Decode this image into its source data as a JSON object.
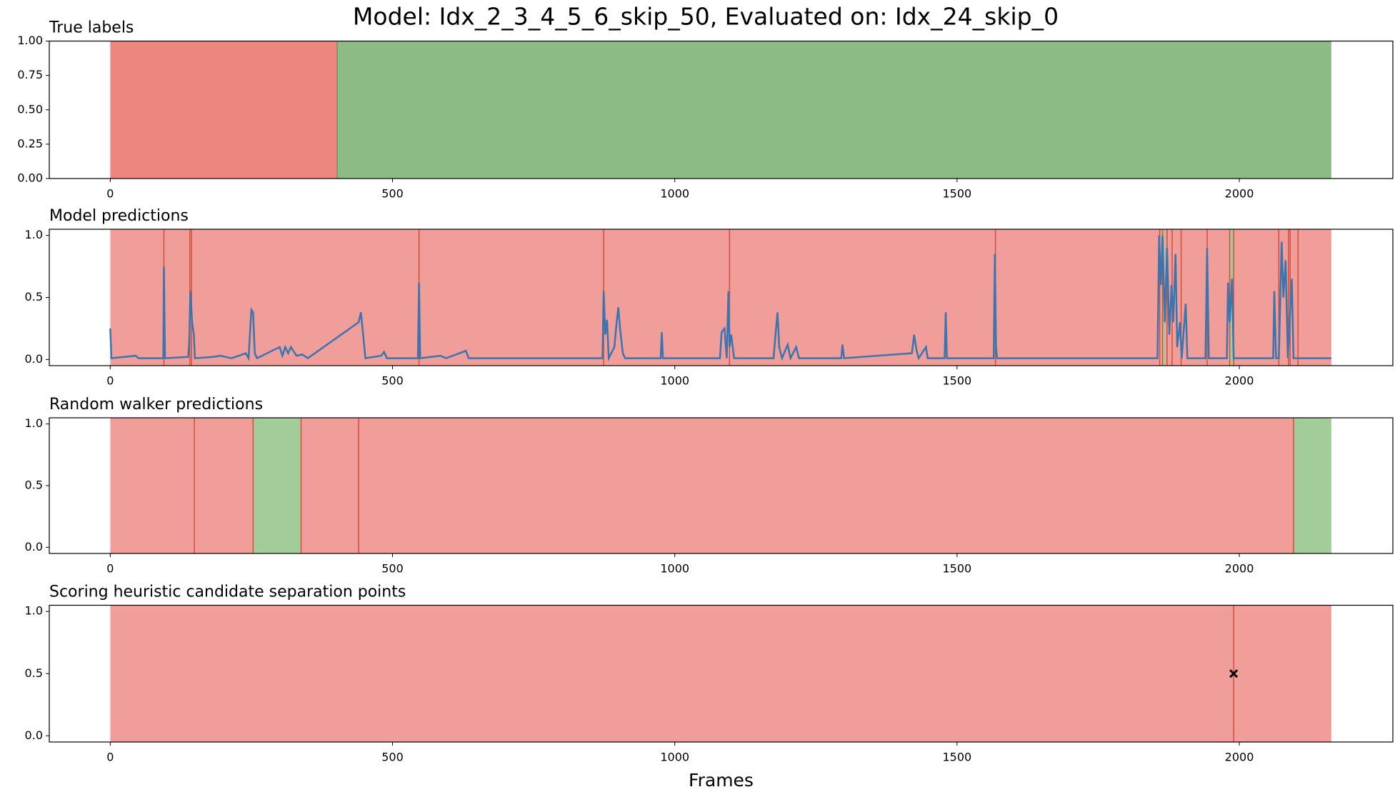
{
  "title": "Model: Idx_2_3_4_5_6_skip_50, Evaluated on: Idx_24_skip_0",
  "chart_data": [
    {
      "type": "spans",
      "title": "True labels",
      "xlim": [
        -108,
        2272
      ],
      "xticks": [
        0,
        500,
        1000,
        1500,
        2000
      ],
      "ylim": [
        0,
        1
      ],
      "yticks": [
        {
          "value": 0,
          "label": "0.00"
        },
        {
          "value": 0.25,
          "label": "0.25"
        },
        {
          "value": 0.5,
          "label": "0.50"
        },
        {
          "value": 0.75,
          "label": "0.75"
        },
        {
          "value": 1,
          "label": "1.00"
        }
      ],
      "spans": [
        {
          "start": 0,
          "end": 402,
          "color": "#ee8680"
        },
        {
          "start": 402,
          "end": 2163,
          "color": "#8dbb85"
        }
      ],
      "vlines": [
        402
      ],
      "vline_color": "#6f9a5a"
    },
    {
      "type": "line",
      "title": "Model predictions",
      "xlim": [
        -108,
        2272
      ],
      "xticks": [
        0,
        500,
        1000,
        1500,
        2000
      ],
      "ylim": [
        -0.05,
        1.05
      ],
      "yticks": [
        {
          "value": 0,
          "label": "0.0"
        },
        {
          "value": 0.5,
          "label": "0.5"
        },
        {
          "value": 1,
          "label": "1.0"
        }
      ],
      "spans": [
        {
          "start": 0,
          "end": 2163,
          "color": "#f19d9a"
        },
        {
          "start": 1862,
          "end": 1868,
          "color": "#a2cc9a"
        },
        {
          "start": 1983,
          "end": 1989,
          "color": "#a2cc9a"
        }
      ],
      "vlines": [
        95,
        141,
        144,
        547,
        874,
        1097,
        1568,
        1859,
        1864,
        1872,
        1881,
        1897,
        1943,
        1983,
        1990,
        2070,
        2087,
        2090,
        2104
      ],
      "vline_color": "#d0503b",
      "series": [
        {
          "color": "#3b75af",
          "x": [
            0,
            2,
            45,
            50,
            94,
            95,
            97,
            138,
            140,
            142,
            145,
            148,
            150,
            180,
            195,
            215,
            240,
            245,
            250,
            253,
            256,
            260,
            300,
            305,
            310,
            315,
            320,
            330,
            340,
            350,
            440,
            444,
            448,
            452,
            480,
            485,
            490,
            545,
            547,
            549,
            585,
            595,
            630,
            635,
            872,
            874,
            877,
            880,
            883,
            893,
            897,
            900,
            903,
            908,
            912,
            975,
            977,
            979,
            1080,
            1083,
            1088,
            1092,
            1095,
            1097,
            1100,
            1105,
            1175,
            1178,
            1182,
            1185,
            1190,
            1200,
            1205,
            1215,
            1220,
            1295,
            1297,
            1300,
            1420,
            1424,
            1428,
            1432,
            1445,
            1448,
            1478,
            1480,
            1482,
            1565,
            1567,
            1569,
            1571,
            1855,
            1858,
            1861,
            1864,
            1868,
            1872,
            1876,
            1880,
            1883,
            1887,
            1890,
            1895,
            1898,
            1905,
            1908,
            1940,
            1943,
            1946,
            1978,
            1980,
            1983,
            1987,
            1990,
            2060,
            2062,
            2065,
            2070,
            2075,
            2078,
            2082,
            2086,
            2093,
            2096,
            2163
          ],
          "values": [
            0.25,
            0.01,
            0.03,
            0.01,
            0.01,
            0.75,
            0.01,
            0.02,
            0.15,
            0.55,
            0.3,
            0.2,
            0.01,
            0.02,
            0.03,
            0.01,
            0.05,
            0.01,
            0.4,
            0.38,
            0.05,
            0.01,
            0.1,
            0.03,
            0.1,
            0.05,
            0.1,
            0.03,
            0.04,
            0.01,
            0.3,
            0.38,
            0.2,
            0.01,
            0.03,
            0.06,
            0.01,
            0.01,
            0.62,
            0.01,
            0.03,
            0.01,
            0.07,
            0.01,
            0.01,
            0.55,
            0.2,
            0.32,
            0.01,
            0.1,
            0.3,
            0.42,
            0.25,
            0.05,
            0.01,
            0.01,
            0.22,
            0.01,
            0.01,
            0.22,
            0.25,
            0.01,
            0.55,
            0.1,
            0.2,
            0.01,
            0.01,
            0.18,
            0.38,
            0.1,
            0.01,
            0.12,
            0.01,
            0.1,
            0.01,
            0.01,
            0.12,
            0.01,
            0.05,
            0.2,
            0.08,
            0.01,
            0.1,
            0.01,
            0.01,
            0.38,
            0.01,
            0.01,
            0.85,
            0.1,
            0.01,
            0.01,
            1.0,
            0.6,
            1.0,
            0.3,
            0.9,
            0.2,
            0.6,
            0.3,
            0.85,
            0.1,
            0.3,
            0.01,
            0.45,
            0.01,
            0.01,
            0.9,
            0.01,
            0.01,
            0.62,
            0.3,
            0.65,
            0.01,
            0.01,
            0.55,
            0.01,
            0.01,
            0.95,
            0.5,
            0.8,
            0.01,
            0.65,
            0.01,
            0.01
          ]
        }
      ]
    },
    {
      "type": "spans",
      "title": "Random walker predictions",
      "xlim": [
        -108,
        2272
      ],
      "xticks": [
        0,
        500,
        1000,
        1500,
        2000
      ],
      "ylim": [
        -0.05,
        1.05
      ],
      "yticks": [
        {
          "value": 0,
          "label": "0.0"
        },
        {
          "value": 0.5,
          "label": "0.5"
        },
        {
          "value": 1,
          "label": "1.0"
        }
      ],
      "spans": [
        {
          "start": 0,
          "end": 253,
          "color": "#f19d9a"
        },
        {
          "start": 253,
          "end": 338,
          "color": "#a2cc9a"
        },
        {
          "start": 338,
          "end": 2096,
          "color": "#f19d9a"
        },
        {
          "start": 2096,
          "end": 2163,
          "color": "#a2cc9a"
        }
      ],
      "vlines": [
        149,
        253,
        338,
        440,
        2096
      ],
      "vline_color": "#d0503b"
    },
    {
      "type": "scatter",
      "title": "Scoring heuristic candidate separation points",
      "xlabel": "Frames",
      "xlim": [
        -108,
        2272
      ],
      "xticks": [
        0,
        500,
        1000,
        1500,
        2000
      ],
      "ylim": [
        -0.05,
        1.05
      ],
      "yticks": [
        {
          "value": 0,
          "label": "0.0"
        },
        {
          "value": 0.5,
          "label": "0.5"
        },
        {
          "value": 1,
          "label": "1.0"
        }
      ],
      "spans": [
        {
          "start": 0,
          "end": 2163,
          "color": "#f19d9a"
        }
      ],
      "vlines": [
        1990
      ],
      "vline_color": "#d0503b",
      "series": [
        {
          "color": "#000000",
          "x": [
            1990
          ],
          "values": [
            0.5
          ]
        }
      ]
    }
  ]
}
